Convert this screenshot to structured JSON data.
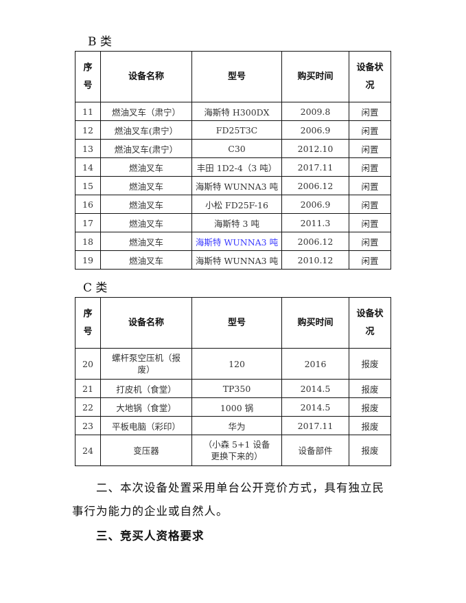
{
  "section_b": {
    "label": "B 类",
    "headers": [
      "序号",
      "设备名称",
      "型号",
      "购买时间",
      "设备状况"
    ],
    "rows": [
      [
        "11",
        "燃油叉车（肃宁）",
        "海斯特 H300DX",
        "2009.8",
        "闲置"
      ],
      [
        "12",
        "燃油叉车(肃宁）",
        "FD25T3C",
        "2006.9",
        "闲置"
      ],
      [
        "13",
        "燃油叉车(肃宁）",
        "C30",
        "2012.10",
        "闲置"
      ],
      [
        "14",
        "燃油叉车",
        "丰田 1D2-4（3 吨）",
        "2017.11",
        "闲置"
      ],
      [
        "15",
        "燃油叉车",
        "海斯特 WUNNA3 吨",
        "2006.12",
        "闲置"
      ],
      [
        "16",
        "燃油叉车",
        "小松 FD25F-16",
        "2006.9",
        "闲置"
      ],
      [
        "17",
        "燃油叉车",
        "海斯特 3 吨",
        "2011.3",
        "闲置"
      ],
      [
        "18",
        "燃油叉车",
        "海斯特 WUNNA3 吨",
        "2006.12",
        "闲置"
      ],
      [
        "19",
        "燃油叉车",
        "海斯特 WUNNA3 吨",
        "2010.12",
        "闲置"
      ]
    ]
  },
  "section_c": {
    "label": "C 类",
    "headers": [
      "序号",
      "设备名称",
      "型号",
      "购买时间",
      "设备状况"
    ],
    "rows": [
      [
        "20",
        "螺杆泵空压机（报废）",
        "120",
        "2016",
        "报废"
      ],
      [
        "21",
        "打皮机（食堂）",
        "TP350",
        "2014.5",
        "报废"
      ],
      [
        "22",
        "大地锅（食堂）",
        "1000 锅",
        "2014.5",
        "报废"
      ],
      [
        "23",
        "平板电脑（彩印）",
        "华为",
        "2017.11",
        "报废"
      ],
      [
        "24",
        "变压器",
        "（小森 5+1 设备更换下来的）",
        "设备部件",
        "报废"
      ]
    ]
  },
  "highlight_color": "#3a3aff",
  "paragraph_1_line1": "二、本次设备处置采用单台公开竞价方式，具有独立民",
  "paragraph_1_line2": "事行为能力的企业或自然人。",
  "heading_3": "三、竞买人资格要求"
}
